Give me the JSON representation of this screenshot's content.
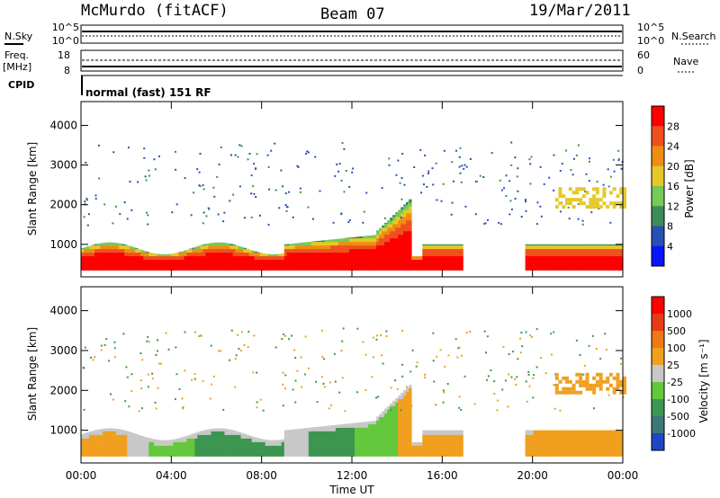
{
  "header": {
    "station": "McMurdo (fitACF)",
    "beam": "Beam 07",
    "date": "19/Mar/2011"
  },
  "status_panels": {
    "nsky_label": "N.Sky",
    "nsky_ticks": [
      "10^5",
      "10^0"
    ],
    "nsearch_label": "N.Search",
    "nsearch_ticks": [
      "10^5",
      "10^0"
    ],
    "freq_label_line1": "Freq.",
    "freq_label_line2": "[MHz]",
    "freq_ticks": [
      "18",
      "8"
    ],
    "nave_label": "Nave",
    "nave_ticks": [
      "60",
      "0"
    ],
    "cpid_label": "CPID",
    "cpid_text": "normal (fast) 151 RF"
  },
  "chart_data": [
    {
      "type": "heatmap",
      "name": "power",
      "ylabel": "Slant Range [km]",
      "yticks": [
        "1000",
        "2000",
        "3000",
        "4000"
      ],
      "ylim": [
        180,
        4600
      ],
      "xlim": [
        0,
        24
      ],
      "colorbar_label": "Power [dB]",
      "colorbar_ticks": [
        "4",
        "8",
        "12",
        "16",
        "20",
        "24",
        "28"
      ],
      "colors": [
        "#0a14ff",
        "#2850b4",
        "#3c8c5a",
        "#78c85a",
        "#e6c828",
        "#f08c14",
        "#f0501e",
        "#ff0000"
      ]
    },
    {
      "type": "heatmap",
      "name": "velocity",
      "ylabel": "Slant Range [km]",
      "yticks": [
        "1000",
        "2000",
        "3000",
        "4000"
      ],
      "ylim": [
        180,
        4600
      ],
      "xlim": [
        0,
        24
      ],
      "colorbar_label": "Velocity [m s⁻¹]",
      "colorbar_ticks": [
        "1000",
        "500",
        "100",
        "25",
        "-25",
        "-100",
        "-500",
        "-1000"
      ],
      "colors": [
        "#1e46c8",
        "#3c7878",
        "#3c9650",
        "#64c83c",
        "#c8c8c8",
        "#f0a01e",
        "#f07814",
        "#e63c14",
        "#ff0000"
      ]
    }
  ],
  "x_axis": {
    "label": "Time UT",
    "ticks": [
      "00:00",
      "04:00",
      "08:00",
      "12:00",
      "16:00",
      "20:00",
      "00:00"
    ]
  }
}
